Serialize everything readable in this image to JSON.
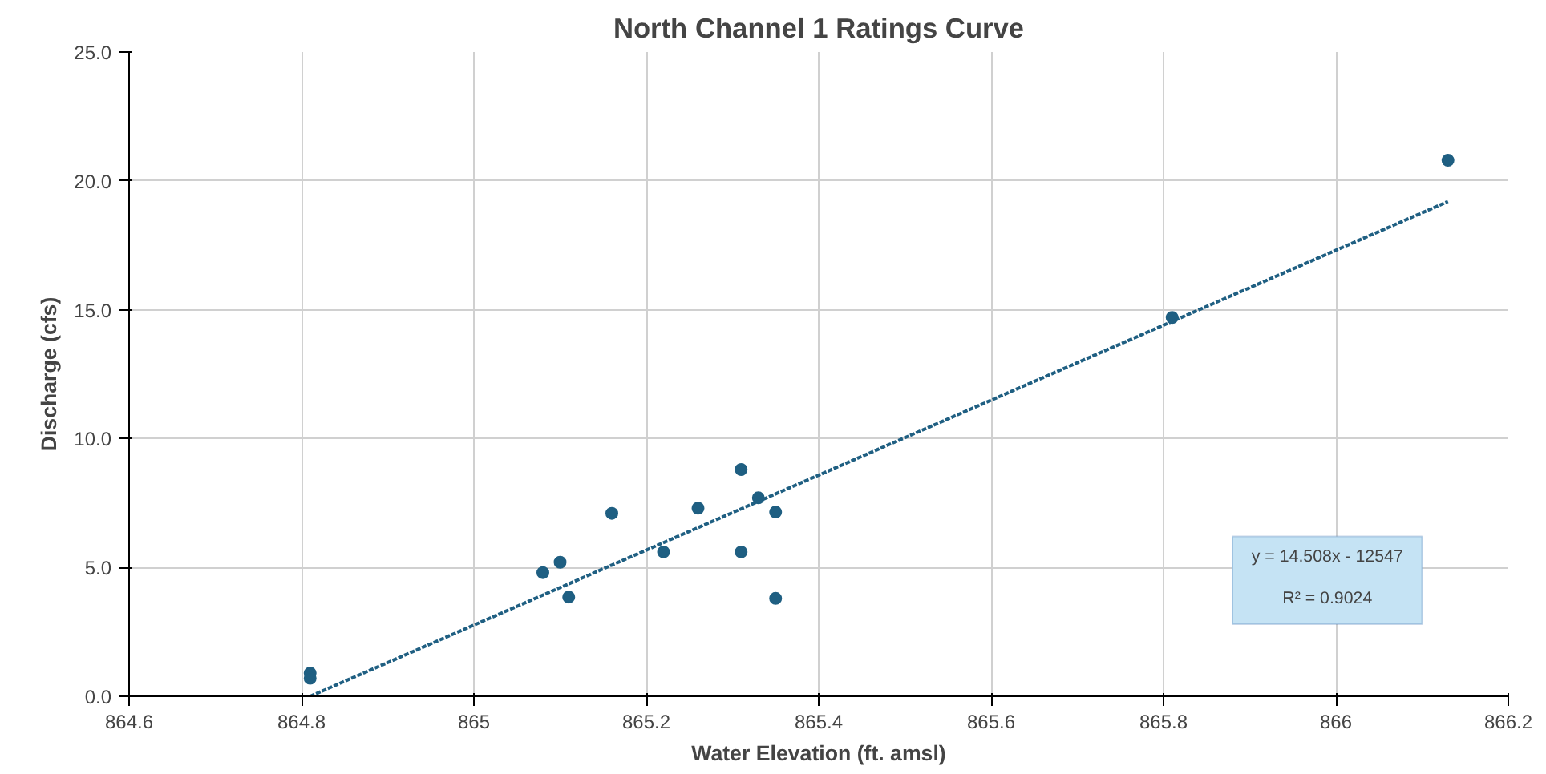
{
  "chart_data": {
    "type": "scatter",
    "title": "North Channel 1 Ratings Curve",
    "xlabel": "Water Elevation (ft. amsl)",
    "ylabel": "Discharge (cfs)",
    "xlim": [
      864.6,
      866.2
    ],
    "xticks": [
      864.6,
      864.8,
      865,
      865.2,
      865.4,
      865.6,
      865.8,
      866,
      866.2
    ],
    "ylim": [
      0,
      25
    ],
    "yticks": [
      {
        "value": 0,
        "label": "0.0"
      },
      {
        "value": 5,
        "label": "5.0"
      },
      {
        "value": 10,
        "label": "10.0"
      },
      {
        "value": 15,
        "label": "15.0"
      },
      {
        "value": 20,
        "label": "20.0"
      },
      {
        "value": 25,
        "label": "25.0"
      }
    ],
    "grid": true,
    "marker": "circle",
    "series": [
      {
        "color": "#1f5f82",
        "x": [
          864.81,
          864.81,
          865.08,
          865.1,
          865.11,
          865.16,
          865.22,
          865.26,
          865.31,
          865.31,
          865.33,
          865.35,
          865.35,
          865.81,
          866.13
        ],
        "values": [
          0.9,
          0.7,
          4.8,
          5.2,
          3.85,
          7.1,
          5.6,
          7.3,
          8.8,
          5.6,
          7.7,
          7.15,
          3.8,
          14.7,
          20.8
        ]
      },
      {
        "type": "line",
        "color": "#1f5f82",
        "line_style": "dotted",
        "marker": "none",
        "x": [
          864.81,
          866.13
        ],
        "values": [
          0.0,
          19.2
        ]
      }
    ],
    "annotations": [
      "y = 14.508x - 12547",
      "R² = 0.9024"
    ]
  }
}
